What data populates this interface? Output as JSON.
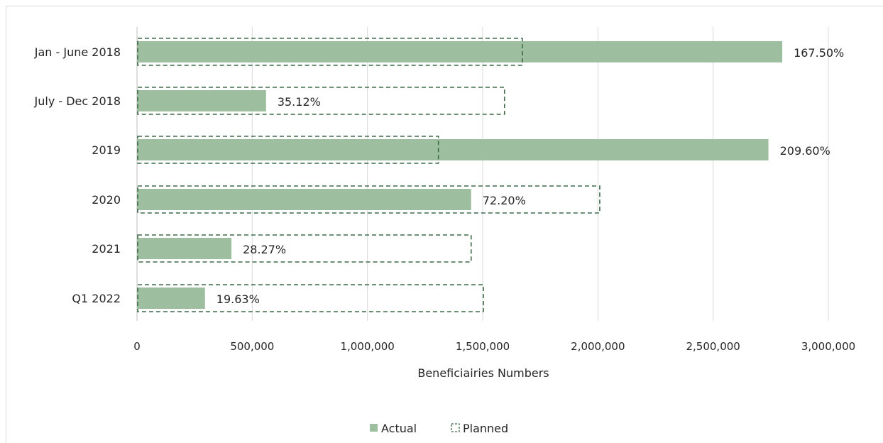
{
  "chart_data": {
    "type": "bar",
    "orientation": "horizontal",
    "categories": [
      "Jan - June 2018",
      "July - Dec 2018",
      "2019",
      "2020",
      "2021",
      "Q1 2022"
    ],
    "series": [
      {
        "name": "Actual",
        "values": [
          2800000,
          560000,
          2740000,
          1450000,
          410000,
          295000
        ],
        "color": "#9dbf9f",
        "style": "solid"
      },
      {
        "name": "Planned",
        "values": [
          1672000,
          1595000,
          1308000,
          2008000,
          1450000,
          1503000
        ],
        "color": "#3e6b4a",
        "style": "dashed-outline"
      }
    ],
    "data_labels": [
      "167.50%",
      "35.12%",
      "209.60%",
      "72.20%",
      "28.27%",
      "19.63%"
    ],
    "xlabel": "Beneficiairies Numbers",
    "ylabel": "",
    "xlim": [
      0,
      3000000
    ],
    "x_ticks": [
      {
        "value": 0,
        "label": "0"
      },
      {
        "value": 500000,
        "label": "500,000"
      },
      {
        "value": 1000000,
        "label": "1,000,000"
      },
      {
        "value": 1500000,
        "label": "1,500,000"
      },
      {
        "value": 2000000,
        "label": "2,000,000"
      },
      {
        "value": 2500000,
        "label": "2,500,000"
      },
      {
        "value": 3000000,
        "label": "3,000,000"
      }
    ],
    "grid": true,
    "legend_position": "bottom"
  }
}
